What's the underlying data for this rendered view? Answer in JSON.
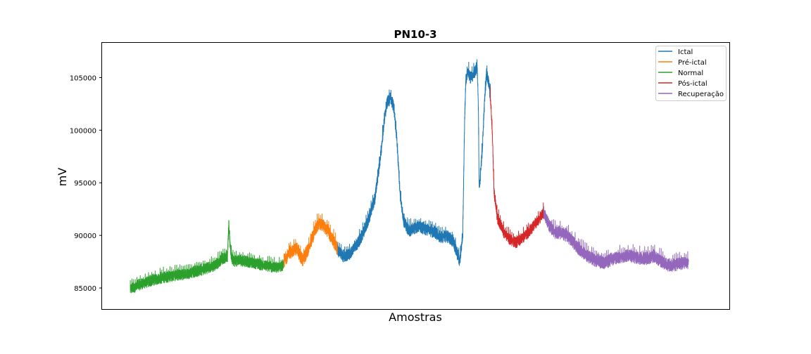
{
  "chart_data": {
    "type": "line",
    "title": "PN10-3",
    "xlabel": "Amostras",
    "ylabel": "mV",
    "xlim": [
      0,
      1000
    ],
    "ylim": [
      83000,
      108300
    ],
    "xticks_visible": false,
    "yticks": [
      {
        "value": 85000,
        "label": "85000"
      },
      {
        "value": 90000,
        "label": "90000"
      },
      {
        "value": 95000,
        "label": "95000"
      },
      {
        "value": 100000,
        "label": "100000"
      },
      {
        "value": 105000,
        "label": "105000"
      }
    ],
    "grid": false,
    "legend": {
      "position": "top-right",
      "entries": [
        {
          "label": "Ictal",
          "color": "#1f77b4"
        },
        {
          "label": "Pré-ictal",
          "color": "#ff7f0e"
        },
        {
          "label": "Normal",
          "color": "#2ca02c"
        },
        {
          "label": "Pós-ictal",
          "color": "#d62728"
        },
        {
          "label": "Recuperação",
          "color": "#9467bd"
        }
      ]
    },
    "series": [
      {
        "name": "Normal",
        "color": "#2ca02c",
        "noise_amplitude": 600,
        "x": [
          45,
          60,
          80,
          100,
          120,
          140,
          160,
          180,
          190,
          200,
          202,
          204,
          206,
          208,
          212,
          220,
          240,
          260,
          280,
          290
        ],
        "y": [
          84900,
          85300,
          85700,
          86000,
          86200,
          86400,
          86700,
          87100,
          87700,
          88000,
          91000,
          89200,
          88000,
          87700,
          87500,
          87600,
          87400,
          87100,
          86900,
          87200
        ]
      },
      {
        "name": "Pré-ictal",
        "color": "#ff7f0e",
        "noise_amplitude": 700,
        "x": [
          290,
          300,
          310,
          320,
          330,
          340,
          345,
          350,
          360,
          370,
          376
        ],
        "y": [
          87500,
          88400,
          88700,
          87600,
          88800,
          90500,
          91100,
          91000,
          90400,
          89300,
          88500
        ]
      },
      {
        "name": "Ictal",
        "color": "#1f77b4",
        "noise_amplitude": 650,
        "x": [
          376,
          385,
          395,
          405,
          415,
          425,
          435,
          445,
          450,
          455,
          460,
          465,
          470,
          475,
          480,
          485,
          490,
          495,
          500,
          505,
          510,
          520,
          530,
          540,
          550,
          560,
          570,
          575,
          578,
          580,
          583,
          587,
          592,
          598,
          600,
          601,
          602,
          604,
          606,
          610,
          613,
          616,
          619
        ],
        "y": [
          88500,
          88000,
          88200,
          89000,
          90000,
          91500,
          93500,
          98000,
          101000,
          102700,
          103000,
          102200,
          99000,
          94000,
          91500,
          90800,
          90400,
          90600,
          90700,
          90900,
          90700,
          90500,
          90300,
          89800,
          89900,
          89400,
          87500,
          90000,
          101000,
          104800,
          105600,
          105000,
          105200,
          106000,
          102000,
          95000,
          94600,
          96500,
          98000,
          103000,
          105400,
          104600,
          103200
        ]
      },
      {
        "name": "Pós-ictal",
        "color": "#d62728",
        "noise_amplitude": 600,
        "x": [
          619,
          622,
          625,
          630,
          640,
          650,
          660,
          670,
          680,
          690,
          700,
          704
        ],
        "y": [
          103200,
          100000,
          94000,
          91700,
          90300,
          89600,
          89300,
          89700,
          90300,
          91000,
          91800,
          92200
        ]
      },
      {
        "name": "Recuperação",
        "color": "#9467bd",
        "noise_amplitude": 700,
        "x": [
          704,
          712,
          720,
          730,
          740,
          750,
          760,
          770,
          780,
          790,
          800,
          810,
          820,
          830,
          840,
          850,
          860,
          870,
          880,
          890,
          900,
          910,
          920,
          935
        ],
        "y": [
          92200,
          91000,
          90300,
          90200,
          90000,
          89400,
          88700,
          88200,
          87800,
          87500,
          87400,
          87600,
          87800,
          88000,
          88100,
          87900,
          87800,
          87800,
          88000,
          87600,
          87200,
          87100,
          87300,
          87400
        ]
      }
    ]
  }
}
